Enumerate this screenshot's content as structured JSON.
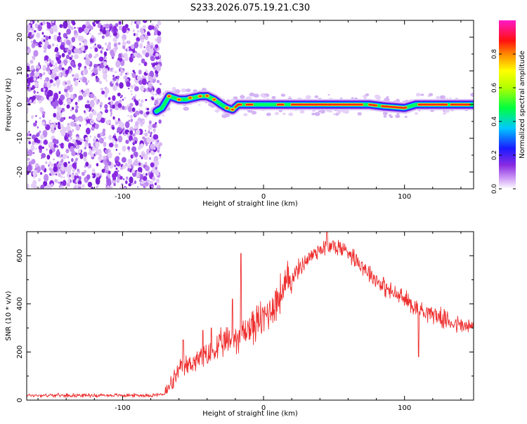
{
  "title": "S233.2026.075.19.21.C30",
  "chart_data": [
    {
      "type": "heatmap",
      "name": "spectrogram",
      "xlabel": "Height of straight line (km)",
      "ylabel": "Frequency (Hz)",
      "xlim": [
        -168,
        149
      ],
      "ylim": [
        -25,
        25
      ],
      "xticks": [
        -100,
        0,
        100
      ],
      "yticks": [
        -20,
        -10,
        0,
        10,
        20
      ],
      "colorbar": {
        "label": "Normalized spectral amplitude",
        "range": [
          0,
          1
        ],
        "ticks": [
          0.0,
          0.2,
          0.4,
          0.6,
          0.8
        ]
      },
      "noise_region_x": [
        -168,
        -75
      ],
      "ridge": {
        "x": [
          -76,
          -72,
          -67,
          -60,
          -55,
          -50,
          -45,
          -40,
          -35,
          -30,
          -26,
          -22,
          -18,
          -14,
          -8,
          0,
          8,
          20,
          40,
          60,
          75,
          85,
          100,
          108,
          115,
          130,
          149
        ],
        "freq": [
          -2,
          -1,
          2.5,
          1.5,
          1.5,
          2,
          2.5,
          2.5,
          1.5,
          0,
          -1,
          -1.5,
          0,
          0,
          0,
          0,
          0,
          0,
          0,
          0,
          0,
          -0.5,
          -1,
          0,
          0,
          0,
          0
        ]
      }
    },
    {
      "type": "line",
      "name": "snr",
      "xlabel": "Height of straight line (km)",
      "ylabel": "SNR (10 * v/v)",
      "xlim": [
        -168,
        149
      ],
      "ylim": [
        0,
        700
      ],
      "xticks": [
        -100,
        0,
        100
      ],
      "yticks": [
        0,
        200,
        400,
        600
      ],
      "color": "#ee2e2e",
      "series": {
        "x": [
          -168,
          -140,
          -110,
          -80,
          -70,
          -65,
          -60,
          -50,
          -40,
          -30,
          -20,
          -10,
          0,
          10,
          20,
          30,
          40,
          50,
          60,
          70,
          80,
          90,
          100,
          110,
          120,
          130,
          140,
          149
        ],
        "snr": [
          20,
          20,
          20,
          20,
          25,
          70,
          120,
          160,
          180,
          230,
          260,
          300,
          340,
          420,
          510,
          580,
          630,
          640,
          620,
          560,
          500,
          450,
          420,
          380,
          360,
          330,
          310,
          300
        ]
      },
      "spikes": [
        {
          "x": -57,
          "snr": 250
        },
        {
          "x": -43,
          "snr": 290
        },
        {
          "x": -37,
          "snr": 300
        },
        {
          "x": -16,
          "snr": 610
        },
        {
          "x": -22,
          "snr": 420
        },
        {
          "x": 45,
          "snr": 700
        },
        {
          "x": 110,
          "snr": 180
        }
      ]
    }
  ]
}
